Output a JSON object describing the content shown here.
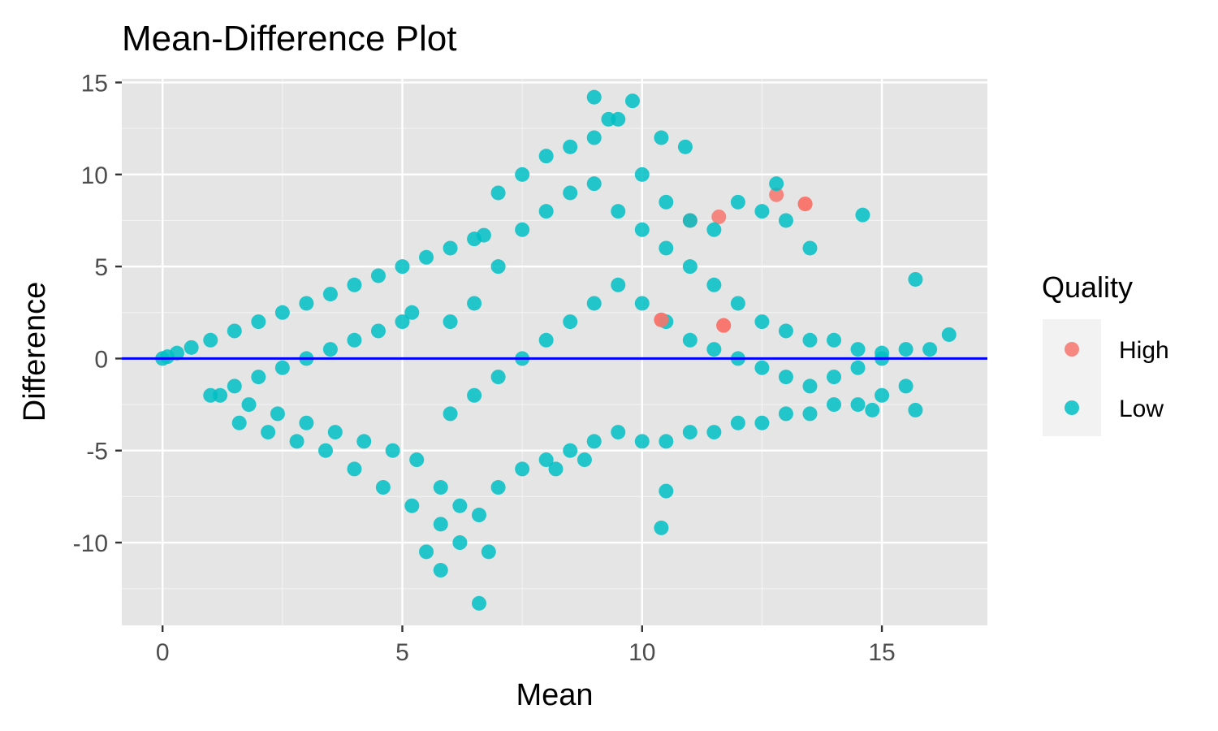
{
  "chart_data": {
    "type": "scatter",
    "title": "Mean-Difference Plot",
    "xlabel": "Mean",
    "ylabel": "Difference",
    "xlim": [
      -0.85,
      17.2
    ],
    "ylim": [
      -14.5,
      15.2
    ],
    "x_ticks": [
      0,
      5,
      10,
      15
    ],
    "y_ticks": [
      -10,
      -5,
      0,
      5,
      10,
      15
    ],
    "x_tick_labels": [
      "0",
      "5",
      "10",
      "15"
    ],
    "y_tick_labels": [
      "-10",
      "-5",
      "0",
      "5",
      "10",
      "15"
    ],
    "grid": true,
    "legend_position": "right",
    "reference_line": {
      "y": 0,
      "color": "#0000ff"
    },
    "legend": {
      "title": "Quality",
      "entries": [
        {
          "label": "High",
          "color": "#F8766D"
        },
        {
          "label": "Low",
          "color": "#00BFC4"
        }
      ]
    },
    "series": [
      {
        "name": "Low",
        "color": "#00BFC4",
        "x": [
          0.0,
          0.1,
          0.3,
          0.6,
          1.0,
          1.5,
          2.0,
          2.5,
          3.0,
          3.5,
          4.0,
          4.5,
          5.0,
          5.5,
          6.0,
          6.5,
          6.7,
          1.0,
          1.5,
          2.0,
          2.5,
          3.0,
          3.5,
          4.0,
          4.5,
          5.0,
          5.2,
          1.2,
          1.8,
          2.4,
          3.0,
          3.6,
          4.2,
          4.8,
          5.3,
          1.6,
          2.2,
          2.8,
          3.4,
          4.0,
          4.6,
          5.2,
          5.8,
          6.2,
          5.5,
          5.8,
          6.6,
          6.8,
          7.0,
          7.5,
          8.0,
          8.5,
          9.0,
          9.5,
          10.0,
          10.5,
          11.0,
          11.5,
          12.0,
          12.5,
          13.0,
          13.5,
          14.0,
          14.5,
          15.0,
          15.5,
          16.0,
          16.4,
          6.0,
          6.5,
          7.0,
          7.5,
          8.0,
          8.5,
          9.0,
          9.5,
          10.0,
          10.5,
          11.0,
          11.5,
          12.0,
          12.5,
          13.0,
          13.5,
          14.0,
          14.5,
          15.0,
          15.5,
          6.0,
          6.5,
          7.0,
          7.5,
          8.0,
          8.5,
          9.0,
          9.5,
          10.0,
          10.5,
          11.0,
          11.5,
          12.0,
          12.5,
          13.0,
          13.5,
          14.0,
          14.5,
          15.0,
          7.0,
          7.5,
          8.0,
          8.5,
          9.0,
          9.5,
          10.0,
          10.5,
          11.0,
          11.5,
          12.0,
          12.5,
          13.0,
          13.5,
          9.0,
          9.3,
          9.8,
          10.4,
          10.9,
          12.8,
          14.6,
          15.7,
          6.6,
          6.2,
          5.8,
          10.5,
          10.4,
          15.7,
          14.8,
          8.2,
          8.8
        ],
        "y": [
          0.0,
          0.1,
          0.3,
          0.6,
          1.0,
          1.5,
          2.0,
          2.5,
          3.0,
          3.5,
          4.0,
          4.5,
          5.0,
          5.5,
          6.0,
          6.5,
          6.7,
          -2.0,
          -1.5,
          -1.0,
          -0.5,
          0.0,
          0.5,
          1.0,
          1.5,
          2.0,
          2.5,
          -2.0,
          -2.5,
          -3.0,
          -3.5,
          -4.0,
          -4.5,
          -5.0,
          -5.5,
          -3.5,
          -4.0,
          -4.5,
          -5.0,
          -6.0,
          -7.0,
          -8.0,
          -9.0,
          -10.0,
          -10.5,
          -11.5,
          -13.3,
          -10.5,
          -7.0,
          -6.0,
          -5.5,
          -5.0,
          -4.5,
          -4.0,
          -4.5,
          -4.5,
          -4.0,
          -4.0,
          -3.5,
          -3.5,
          -3.0,
          -3.0,
          -2.5,
          -2.5,
          -2.0,
          -1.5,
          0.5,
          1.3,
          -3.0,
          -2.0,
          -1.0,
          0.0,
          1.0,
          2.0,
          3.0,
          4.0,
          3.0,
          2.0,
          1.0,
          0.5,
          0.0,
          -0.5,
          -1.0,
          -1.5,
          -1.0,
          -0.5,
          0.0,
          0.5,
          2.0,
          3.0,
          5.0,
          7.0,
          8.0,
          9.0,
          9.5,
          8.0,
          7.0,
          6.0,
          5.0,
          4.0,
          3.0,
          2.0,
          1.5,
          1.0,
          1.0,
          0.5,
          0.3,
          9.0,
          10.0,
          11.0,
          11.5,
          12.0,
          13.0,
          10.0,
          8.5,
          7.5,
          7.0,
          8.5,
          8.0,
          7.5,
          6.0,
          14.2,
          13.0,
          14.0,
          12.0,
          11.5,
          9.5,
          7.8,
          4.3,
          -8.5,
          -8.0,
          -7.0,
          -7.2,
          -9.2,
          -2.8,
          -2.8,
          -6.0,
          -5.5
        ]
      },
      {
        "name": "High",
        "color": "#F8766D",
        "x": [
          10.4,
          11.7,
          11.0,
          11.6,
          12.8,
          13.4
        ],
        "y": [
          2.1,
          1.8,
          7.5,
          7.7,
          8.9,
          8.4
        ]
      }
    ]
  }
}
